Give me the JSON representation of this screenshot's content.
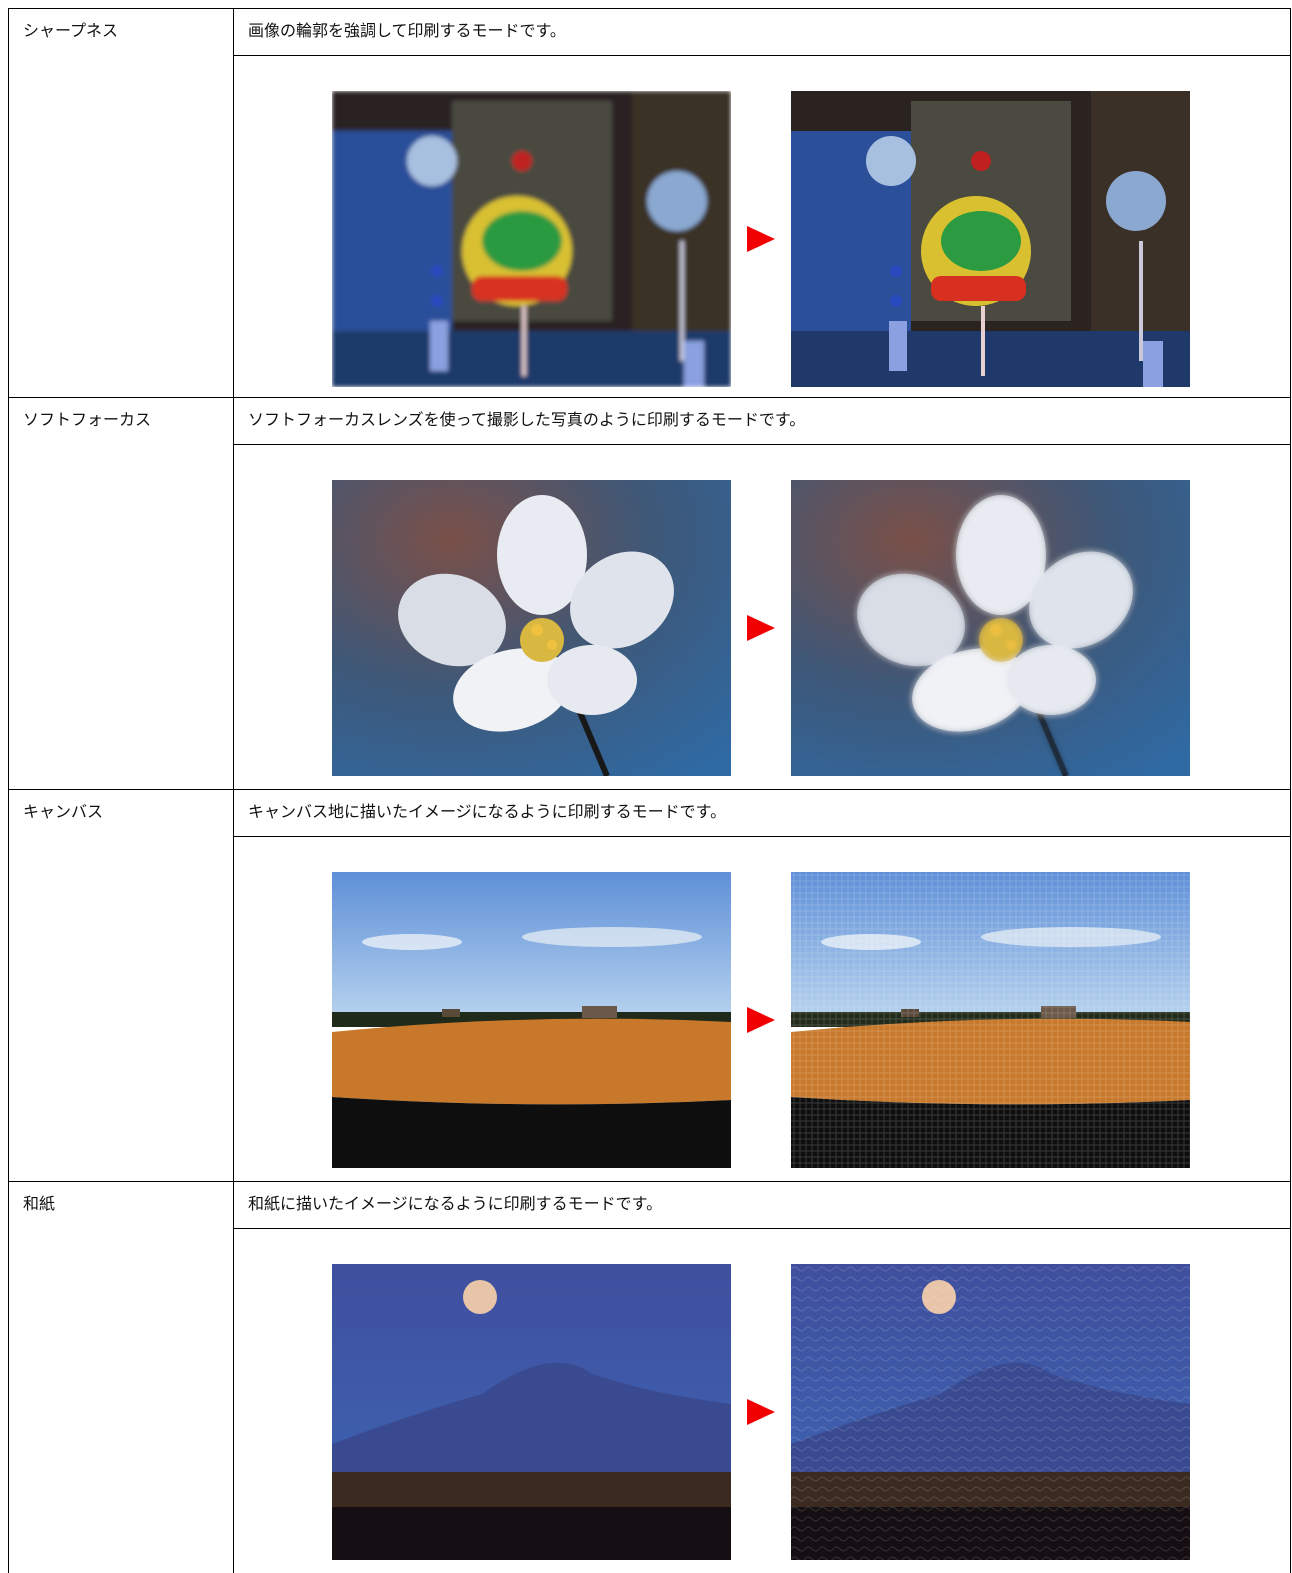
{
  "rows": [
    {
      "name": "シャープネス",
      "description": "画像の輪郭を強調して印刷するモードです。"
    },
    {
      "name": "ソフトフォーカス",
      "description": "ソフトフォーカスレンズを使って撮影した写真のように印刷するモードです。"
    },
    {
      "name": "キャンバス",
      "description": "キャンバス地に描いたイメージになるように印刷するモードです。"
    },
    {
      "name": "和紙",
      "description": "和紙に描いたイメージになるように印刷するモードです。"
    }
  ]
}
